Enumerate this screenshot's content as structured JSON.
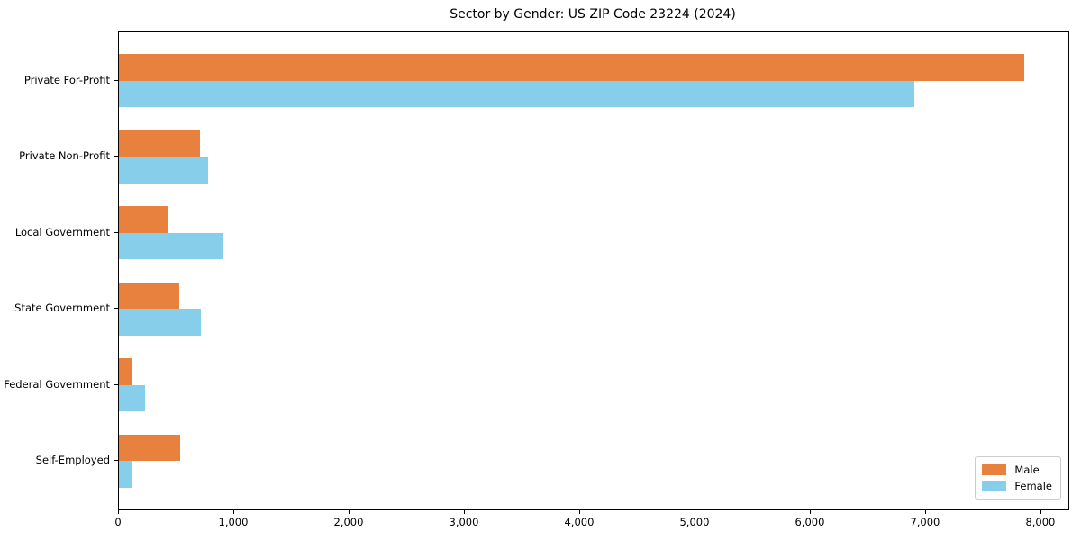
{
  "chart_data": {
    "type": "bar",
    "orientation": "horizontal",
    "title": "Sector by Gender: US ZIP Code 23224 (2024)",
    "categories": [
      "Private For-Profit",
      "Private Non-Profit",
      "Local Government",
      "State Government",
      "Federal Government",
      "Self-Employed"
    ],
    "series": [
      {
        "name": "Male",
        "color": "#e8803e",
        "values": [
          7850,
          700,
          420,
          520,
          110,
          530
        ]
      },
      {
        "name": "Female",
        "color": "#87ceeb",
        "values": [
          6900,
          770,
          900,
          710,
          230,
          110
        ]
      }
    ],
    "xlabel": "",
    "ylabel": "",
    "xlim": [
      0,
      8235
    ],
    "xticks": [
      0,
      1000,
      2000,
      3000,
      4000,
      5000,
      6000,
      7000,
      8000
    ],
    "xtick_labels": [
      "0",
      "1,000",
      "2,000",
      "3,000",
      "4,000",
      "5,000",
      "6,000",
      "7,000",
      "8,000"
    ],
    "legend_position": "lower right",
    "grid": false,
    "axis_color": "#000000"
  }
}
